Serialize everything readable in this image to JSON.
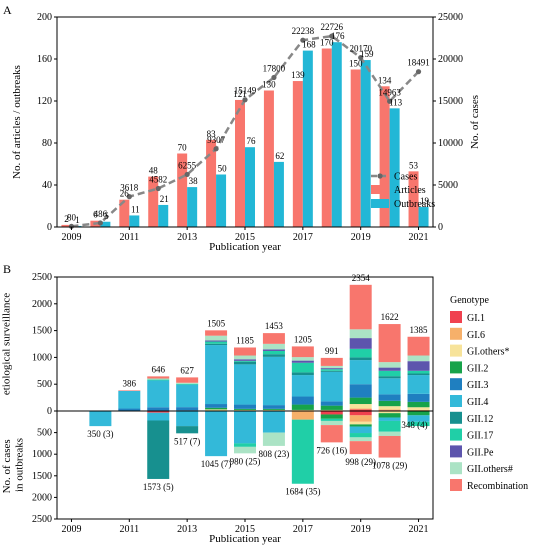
{
  "colors": {
    "articles": "#f8766d",
    "outbreaks": "#22b7d6",
    "cases_line": "#888888",
    "cases_marker": "#666666",
    "divider": "#000000"
  },
  "chart_data": [
    {
      "type": "bar",
      "panel": "A",
      "xlabel": "Publication year",
      "ylabel": "No. of articles / outbreaks",
      "y2label": "No. of cases",
      "x_ticks": [
        "2009",
        "2011",
        "2013",
        "2015",
        "2017",
        "2019",
        "2021"
      ],
      "categories": [
        "2009",
        "2010",
        "2011",
        "2012",
        "2013",
        "2014",
        "2015",
        "2016",
        "2017",
        "2018",
        "2019",
        "2020",
        "2021"
      ],
      "ylim": [
        0,
        200
      ],
      "y_ticks": [
        "0",
        "40",
        "80",
        "120",
        "160",
        "200"
      ],
      "y2lim": [
        0,
        25000
      ],
      "y2_ticks": [
        "0",
        "5000",
        "10000",
        "15000",
        "20000",
        "25000"
      ],
      "legend_position": "right",
      "series": [
        {
          "name": "Articles",
          "axis": "left",
          "style": "bar",
          "values": [
            2,
            6,
            26,
            48,
            70,
            83,
            121,
            130,
            139,
            170,
            150,
            134,
            53
          ],
          "labels": [
            "2",
            "6",
            "26",
            "48",
            "70",
            "83",
            "121",
            "130",
            "139",
            "170",
            "150",
            "134",
            "53"
          ]
        },
        {
          "name": "Outbreaks",
          "axis": "left",
          "style": "bar",
          "values": [
            1,
            5,
            11,
            21,
            38,
            50,
            76,
            62,
            168,
            176,
            159,
            113,
            19
          ],
          "labels": [
            "1",
            "5",
            "11",
            "21",
            "38",
            "50",
            "76",
            "62",
            "168",
            "176",
            "159",
            "113",
            "19"
          ]
        },
        {
          "name": "Cases",
          "axis": "right",
          "style": "line",
          "values": [
            80,
            486,
            3618,
            4582,
            6255,
            9307,
            15149,
            17800,
            22238,
            22726,
            20170,
            14963,
            18491
          ],
          "labels": [
            "80",
            "486",
            "3618",
            "4582",
            "6255",
            "9307",
            "15149",
            "17800",
            "22238",
            "22726",
            "20170",
            "14963",
            "18491"
          ]
        }
      ]
    },
    {
      "type": "bar",
      "panel": "B",
      "stacked": true,
      "xlabel": "Publication year",
      "ylabel_top": "No. of cases in etiological surveillance",
      "ylabel_bottom": "No. of cases in outbreaks",
      "x_ticks": [
        "2009",
        "2011",
        "2013",
        "2015",
        "2017",
        "2019",
        "2021"
      ],
      "categories": [
        "2009",
        "2010",
        "2011",
        "2012",
        "2013",
        "2014",
        "2015",
        "2016",
        "2017",
        "2018",
        "2019",
        "2020",
        "2021"
      ],
      "top_ylim": [
        0,
        2500
      ],
      "top_y_ticks": [
        "0",
        "500",
        "1000",
        "1500",
        "2000",
        "2500"
      ],
      "bottom_ylim": [
        0,
        2500
      ],
      "bottom_y_ticks": [
        "0",
        "500",
        "1000",
        "1500",
        "2000",
        "2500"
      ],
      "legend_title": "Genotype",
      "legend_position": "right",
      "genotypes": [
        {
          "name": "GI.1",
          "color": "#f0414f"
        },
        {
          "name": "GI.6",
          "color": "#f6b06a"
        },
        {
          "name": "GI.others*",
          "color": "#f7e39a"
        },
        {
          "name": "GII.2",
          "color": "#17a34a"
        },
        {
          "name": "GII.3",
          "color": "#1f7fc0"
        },
        {
          "name": "GII.4",
          "color": "#33b9d9"
        },
        {
          "name": "GII.12",
          "color": "#17908f"
        },
        {
          "name": "GII.17",
          "color": "#20cfa7"
        },
        {
          "name": "GII.Pe",
          "color": "#5d55ad"
        },
        {
          "name": "GII.others#",
          "color": "#abe3c5"
        },
        {
          "name": "Recombination",
          "color": "#f8766d"
        }
      ],
      "surveillance_totals": [
        0,
        0,
        386,
        646,
        627,
        1505,
        1185,
        1453,
        1205,
        991,
        2354,
        1622,
        1385
      ],
      "surveillance_labels": [
        "",
        "",
        "386",
        "646",
        "627",
        "1505",
        "1185",
        "1453",
        "1205",
        "991",
        "2354",
        "1622",
        "1385"
      ],
      "surveillance_stacks": [
        [
          0,
          0,
          0,
          0,
          0,
          0,
          0,
          0,
          0,
          0,
          0
        ],
        [
          0,
          0,
          0,
          0,
          0,
          0,
          0,
          0,
          0,
          0,
          0
        ],
        [
          0,
          0,
          6,
          0,
          40,
          330,
          0,
          0,
          0,
          0,
          10
        ],
        [
          0,
          0,
          10,
          0,
          60,
          500,
          0,
          16,
          0,
          20,
          40
        ],
        [
          0,
          0,
          12,
          0,
          60,
          420,
          0,
          15,
          0,
          20,
          100
        ],
        [
          0,
          0,
          30,
          30,
          70,
          1100,
          25,
          40,
          20,
          90,
          100
        ],
        [
          0,
          0,
          20,
          20,
          80,
          750,
          50,
          15,
          30,
          70,
          150
        ],
        [
          0,
          0,
          20,
          20,
          70,
          900,
          50,
          60,
          30,
          103,
          200
        ],
        [
          0,
          0,
          20,
          100,
          150,
          400,
          50,
          180,
          40,
          65,
          200
        ],
        [
          0,
          0,
          20,
          80,
          80,
          550,
          20,
          30,
          20,
          41,
          150
        ],
        [
          30,
          20,
          80,
          120,
          250,
          450,
          50,
          160,
          200,
          164,
          830
        ],
        [
          15,
          15,
          60,
          100,
          120,
          300,
          40,
          100,
          60,
          102,
          710
        ],
        [
          10,
          10,
          50,
          100,
          150,
          350,
          30,
          50,
          180,
          105,
          350
        ]
      ],
      "outbreak_totals": [
        0,
        350,
        0,
        1573,
        517,
        1045,
        980,
        808,
        1684,
        726,
        998,
        1078,
        348
      ],
      "outbreak_labels": [
        "",
        "350 (3)",
        "",
        "1573 (5)",
        "517 (7)",
        "1045 (7)",
        "980 (25)",
        "808 (23)",
        "1684 (35)",
        "726 (16)",
        "998 (29)",
        "1078 (29)",
        "348 (4)"
      ],
      "outbreak_stacks": [
        [
          0,
          0,
          0,
          0,
          0,
          0,
          0,
          0,
          0,
          0,
          0
        ],
        [
          0,
          0,
          0,
          0,
          0,
          350,
          0,
          0,
          0,
          0,
          0
        ],
        [
          0,
          0,
          0,
          0,
          0,
          0,
          0,
          0,
          0,
          0,
          0
        ],
        [
          40,
          0,
          0,
          0,
          0,
          180,
          1353,
          0,
          0,
          0,
          0
        ],
        [
          0,
          0,
          0,
          0,
          0,
          350,
          167,
          0,
          0,
          0,
          0
        ],
        [
          0,
          0,
          0,
          0,
          0,
          1045,
          0,
          0,
          0,
          0,
          0
        ],
        [
          0,
          0,
          0,
          0,
          0,
          750,
          0,
          80,
          0,
          150,
          0
        ],
        [
          0,
          0,
          0,
          0,
          0,
          500,
          0,
          0,
          0,
          308,
          0
        ],
        [
          0,
          200,
          0,
          0,
          0,
          0,
          0,
          1484,
          0,
          0,
          0
        ],
        [
          80,
          0,
          0,
          100,
          0,
          0,
          0,
          50,
          0,
          96,
          400
        ],
        [
          100,
          150,
          60,
          50,
          0,
          150,
          0,
          100,
          0,
          88,
          300
        ],
        [
          0,
          0,
          50,
          100,
          0,
          80,
          0,
          250,
          0,
          98,
          500
        ],
        [
          0,
          0,
          0,
          100,
          0,
          150,
          0,
          98,
          0,
          0,
          0
        ]
      ]
    }
  ],
  "panel_labels": {
    "a": "A",
    "b": "B"
  }
}
